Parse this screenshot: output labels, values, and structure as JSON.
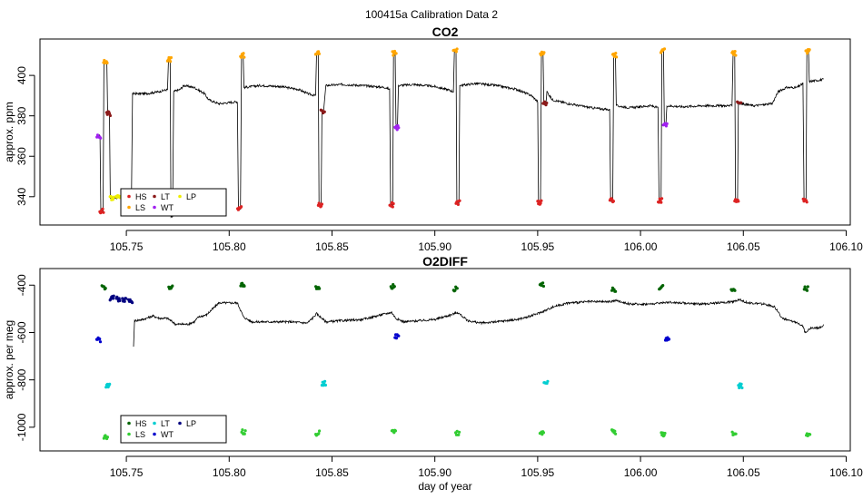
{
  "figure_title": "100415a   Calibration Data 2",
  "chart_data": [
    {
      "type": "line",
      "title": "CO2",
      "xlabel": "",
      "ylabel": "approx. ppm",
      "xlim": [
        105.708,
        106.102
      ],
      "ylim": [
        326,
        418
      ],
      "x_ticks": [
        "105.75",
        "105.80",
        "105.85",
        "105.90",
        "105.95",
        "106.00",
        "106.05",
        "106.10"
      ],
      "x_tick_values": [
        105.75,
        105.8,
        105.85,
        105.9,
        105.95,
        106.0,
        106.05,
        106.1
      ],
      "y_ticks": [
        "340",
        "360",
        "380",
        "400"
      ],
      "y_tick_values": [
        340,
        360,
        380,
        400
      ],
      "grid": false,
      "legend_position": "bottom-left",
      "legend": [
        {
          "label": "HS",
          "color": "#dd2222"
        },
        {
          "label": "LS",
          "color": "#ffa500"
        },
        {
          "label": "LT",
          "color": "#8b1a1a"
        },
        {
          "label": "WT",
          "color": "#a020f0"
        },
        {
          "label": "LP",
          "color": "#eeee00"
        }
      ],
      "series_black": [
        [
          105.736,
          370
        ],
        [
          105.7372,
          370
        ],
        [
          105.7376,
          333
        ],
        [
          105.7387,
          333
        ],
        [
          105.7391,
          407
        ],
        [
          105.7405,
          407
        ],
        [
          105.7409,
          381
        ],
        [
          105.7418,
          381
        ],
        [
          105.7422,
          339.5
        ],
        [
          105.7525,
          339.5
        ],
        [
          105.753,
          391
        ],
        [
          105.76,
          391
        ],
        [
          105.766,
          392
        ],
        [
          105.77,
          393
        ],
        [
          105.7705,
          408
        ],
        [
          105.7713,
          408
        ],
        [
          105.7717,
          330
        ],
        [
          105.7725,
          330
        ],
        [
          105.773,
          392
        ],
        [
          105.776,
          393
        ],
        [
          105.778,
          395
        ],
        [
          105.783,
          394
        ],
        [
          105.788,
          391
        ],
        [
          105.79,
          388
        ],
        [
          105.795,
          386
        ],
        [
          105.804,
          387
        ],
        [
          105.8045,
          334
        ],
        [
          105.8055,
          334
        ],
        [
          105.806,
          410
        ],
        [
          105.8068,
          410
        ],
        [
          105.8072,
          394
        ],
        [
          105.815,
          395
        ],
        [
          105.825,
          394.5
        ],
        [
          105.834,
          393
        ],
        [
          105.838,
          391
        ],
        [
          105.842,
          390
        ],
        [
          105.8425,
          411
        ],
        [
          105.8433,
          411
        ],
        [
          105.8437,
          336
        ],
        [
          105.8447,
          336
        ],
        [
          105.8451,
          382
        ],
        [
          105.846,
          383
        ],
        [
          105.847,
          395
        ],
        [
          105.855,
          395.5
        ],
        [
          105.865,
          395
        ],
        [
          105.876,
          394
        ],
        [
          105.878,
          393
        ],
        [
          105.8785,
          336
        ],
        [
          105.8795,
          336
        ],
        [
          105.8799,
          411
        ],
        [
          105.8807,
          411
        ],
        [
          105.8811,
          376
        ],
        [
          105.8818,
          374
        ],
        [
          105.8823,
          395
        ],
        [
          105.89,
          395.5
        ],
        [
          105.9,
          394.5
        ],
        [
          105.906,
          393
        ],
        [
          105.909,
          392
        ],
        [
          105.9095,
          412
        ],
        [
          105.9103,
          412
        ],
        [
          105.9107,
          337
        ],
        [
          105.9117,
          337
        ],
        [
          105.9121,
          395
        ],
        [
          105.92,
          396
        ],
        [
          105.93,
          395
        ],
        [
          105.94,
          393
        ],
        [
          105.947,
          390
        ],
        [
          105.95,
          387
        ],
        [
          105.9504,
          337
        ],
        [
          105.9514,
          337
        ],
        [
          105.9518,
          411
        ],
        [
          105.9526,
          411
        ],
        [
          105.953,
          386
        ],
        [
          105.954,
          386
        ],
        [
          105.9545,
          392
        ],
        [
          105.957,
          388
        ],
        [
          105.965,
          386
        ],
        [
          105.976,
          384
        ],
        [
          105.985,
          383
        ],
        [
          105.9855,
          338
        ],
        [
          105.9865,
          338
        ],
        [
          105.987,
          410
        ],
        [
          105.9878,
          410
        ],
        [
          105.9882,
          385
        ],
        [
          105.995,
          384
        ],
        [
          106.005,
          385
        ],
        [
          106.0085,
          384
        ],
        [
          106.009,
          338
        ],
        [
          106.01,
          338
        ],
        [
          106.0104,
          412
        ],
        [
          106.0112,
          412
        ],
        [
          106.0116,
          377
        ],
        [
          106.0124,
          376
        ],
        [
          106.0128,
          385
        ],
        [
          106.02,
          384.5
        ],
        [
          106.03,
          385
        ],
        [
          106.0445,
          385
        ],
        [
          106.045,
          411
        ],
        [
          106.0458,
          411
        ],
        [
          106.0462,
          338
        ],
        [
          106.0472,
          338
        ],
        [
          106.0476,
          386
        ],
        [
          106.049,
          386
        ],
        [
          106.055,
          385
        ],
        [
          106.064,
          386
        ],
        [
          106.067,
          392
        ],
        [
          106.071,
          394
        ],
        [
          106.076,
          394
        ],
        [
          106.079,
          396
        ],
        [
          106.0795,
          338
        ],
        [
          106.0805,
          338
        ],
        [
          106.0809,
          412
        ],
        [
          106.0817,
          412
        ],
        [
          106.0821,
          397
        ],
        [
          106.089,
          398
        ]
      ],
      "calibration_points": [
        {
          "gas": "HS",
          "x": [
            105.738,
            105.805,
            105.8442,
            105.879,
            105.9112,
            105.9509,
            105.986,
            106.0095,
            106.0467,
            106.08
          ],
          "y": [
            333,
            334,
            336,
            336,
            337,
            337,
            338,
            338,
            338,
            338
          ]
        },
        {
          "gas": "LS",
          "x": [
            105.7398,
            105.7709,
            105.8064,
            105.8429,
            105.8803,
            105.9099,
            105.9522,
            105.9874,
            106.0108,
            106.0454,
            106.0813
          ],
          "y": [
            407,
            408,
            410,
            411,
            411,
            412,
            411,
            410,
            412,
            411,
            412
          ]
        },
        {
          "gas": "LT",
          "x": [
            105.7413,
            105.8455,
            105.9535,
            106.048
          ],
          "y": [
            381,
            382,
            386,
            387
          ]
        },
        {
          "gas": "WT",
          "x": [
            105.7366,
            105.8815,
            106.012
          ],
          "y": [
            370,
            374,
            376
          ]
        },
        {
          "gas": "LP",
          "x": [
            105.743,
            105.746,
            105.749,
            105.752
          ],
          "y": [
            339.5,
            339.5,
            339.5,
            339.5
          ]
        }
      ]
    },
    {
      "type": "line",
      "title": "O2DIFF",
      "xlabel": "day of year",
      "ylabel": "approx. per meg",
      "xlim": [
        105.708,
        106.102
      ],
      "ylim": [
        -1100,
        -330
      ],
      "x_ticks": [
        "105.75",
        "105.80",
        "105.85",
        "105.90",
        "105.95",
        "106.00",
        "106.05",
        "106.10"
      ],
      "x_tick_values": [
        105.75,
        105.8,
        105.85,
        105.9,
        105.95,
        106.0,
        106.05,
        106.1
      ],
      "y_ticks": [
        "-1000",
        "-800",
        "-600",
        "-400"
      ],
      "y_tick_values": [
        -1000,
        -800,
        -600,
        -400
      ],
      "grid": false,
      "legend_position": "bottom-left",
      "legend": [
        {
          "label": "HS",
          "color": "#006400"
        },
        {
          "label": "LS",
          "color": "#32cd32"
        },
        {
          "label": "LT",
          "color": "#00ced1"
        },
        {
          "label": "WT",
          "color": "#0000cd"
        },
        {
          "label": "LP",
          "color": "#000080"
        }
      ],
      "series_black": [
        [
          105.7535,
          -660
        ],
        [
          105.754,
          -550
        ],
        [
          105.758,
          -545
        ],
        [
          105.763,
          -530
        ],
        [
          105.766,
          -540
        ],
        [
          105.77,
          -540
        ],
        [
          105.774,
          -565
        ],
        [
          105.78,
          -565
        ],
        [
          105.783,
          -555
        ],
        [
          105.785,
          -535
        ],
        [
          105.789,
          -525
        ],
        [
          105.792,
          -500
        ],
        [
          105.795,
          -475
        ],
        [
          105.804,
          -475
        ],
        [
          105.807,
          -535
        ],
        [
          105.811,
          -555
        ],
        [
          105.82,
          -555
        ],
        [
          105.83,
          -555
        ],
        [
          105.838,
          -560
        ],
        [
          105.841,
          -535
        ],
        [
          105.8425,
          -520
        ],
        [
          105.847,
          -555
        ],
        [
          105.855,
          -550
        ],
        [
          105.865,
          -545
        ],
        [
          105.874,
          -525
        ],
        [
          105.879,
          -515
        ],
        [
          105.881,
          -540
        ],
        [
          105.885,
          -555
        ],
        [
          105.893,
          -550
        ],
        [
          105.9,
          -545
        ],
        [
          105.908,
          -525
        ],
        [
          105.911,
          -515
        ],
        [
          105.916,
          -550
        ],
        [
          105.922,
          -560
        ],
        [
          105.93,
          -555
        ],
        [
          105.94,
          -545
        ],
        [
          105.945,
          -535
        ],
        [
          105.95,
          -520
        ],
        [
          105.953,
          -510
        ],
        [
          105.958,
          -490
        ],
        [
          105.965,
          -475
        ],
        [
          105.975,
          -470
        ],
        [
          105.985,
          -470
        ],
        [
          105.988,
          -465
        ],
        [
          105.995,
          -480
        ],
        [
          106.005,
          -480
        ],
        [
          106.013,
          -472
        ],
        [
          106.02,
          -475
        ],
        [
          106.03,
          -480
        ],
        [
          106.045,
          -470
        ],
        [
          106.048,
          -460
        ],
        [
          106.052,
          -475
        ],
        [
          106.06,
          -480
        ],
        [
          106.065,
          -490
        ],
        [
          106.069,
          -540
        ],
        [
          106.072,
          -550
        ],
        [
          106.077,
          -560
        ],
        [
          106.079,
          -575
        ],
        [
          106.08,
          -600
        ],
        [
          106.083,
          -580
        ],
        [
          106.087,
          -580
        ],
        [
          106.089,
          -570
        ]
      ],
      "calibration_points": [
        {
          "gas": "HS",
          "x": [
            105.739,
            105.7715,
            105.8065,
            105.843,
            105.8795,
            105.91,
            105.952,
            105.987,
            106.01,
            106.045,
            106.0805
          ],
          "y": [
            -410,
            -410,
            -400,
            -410,
            -405,
            -415,
            -400,
            -420,
            -410,
            -420,
            -415
          ]
        },
        {
          "gas": "LS",
          "x": [
            105.74,
            105.7715,
            105.807,
            105.843,
            105.88,
            105.911,
            105.952,
            105.987,
            106.011,
            106.0455,
            106.0815
          ],
          "y": [
            -1040,
            -1020,
            -1020,
            -1025,
            -1020,
            -1025,
            -1025,
            -1020,
            -1030,
            -1025,
            -1030
          ]
        },
        {
          "gas": "LT",
          "x": [
            105.741,
            105.846,
            105.954,
            106.0485
          ],
          "y": [
            -825,
            -815,
            -815,
            -825
          ]
        },
        {
          "gas": "WT",
          "x": [
            105.7365,
            105.8815,
            106.013
          ],
          "y": [
            -630,
            -615,
            -625
          ]
        },
        {
          "gas": "LP",
          "x": [
            105.743,
            105.746,
            105.749,
            105.752
          ],
          "y": [
            -455,
            -460,
            -460,
            -465
          ]
        }
      ]
    }
  ]
}
